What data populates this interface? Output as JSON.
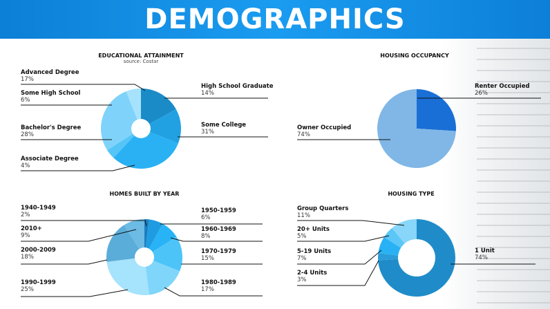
{
  "header": {
    "title": "DEMOGRAPHICS"
  },
  "chart_data": [
    {
      "type": "pie",
      "title": "EDUCATIONAL ATTAINMENT",
      "subtitle": "source: Costar",
      "categories": [
        "Advanced Degree",
        "High School Graduate",
        "Some College",
        "Associate Degree",
        "Bachelor's Degree",
        "Some High School"
      ],
      "values": [
        17,
        14,
        31,
        4,
        28,
        6
      ],
      "labels": [
        "17%",
        "14%",
        "31%",
        "4%",
        "28%",
        "6%"
      ],
      "colors": [
        "#1b8bc7",
        "#22a1e2",
        "#29b1f4",
        "#55c5f7",
        "#7fd3fa",
        "#a7e2fc"
      ]
    },
    {
      "type": "pie",
      "title": "HOUSING OCCUPANCY",
      "categories": [
        "Renter Occupied",
        "Owner Occupied"
      ],
      "values": [
        26,
        74
      ],
      "labels": [
        "26%",
        "74%"
      ],
      "colors": [
        "#1a6fd6",
        "#80b7e6"
      ]
    },
    {
      "type": "pie",
      "title": "HOMES BUILT BY YEAR",
      "categories": [
        "1940-1949",
        "1950-1959",
        "1960-1969",
        "1970-1979",
        "1980-1989",
        "1990-1999",
        "2000-2009",
        "2010+"
      ],
      "values": [
        2,
        6,
        8,
        15,
        17,
        25,
        18,
        9
      ],
      "labels": [
        "2%",
        "6%",
        "8%",
        "15%",
        "17%",
        "25%",
        "18%",
        "9%"
      ],
      "colors": [
        "#1a7fbf",
        "#1f9ce1",
        "#28b3f6",
        "#4dc4f8",
        "#80d5fa",
        "#a6e3fc",
        "#5badd9",
        "#6cbbe5"
      ]
    },
    {
      "type": "pie",
      "title": "HOUSING TYPE",
      "categories": [
        "1 Unit",
        "2-4 Units",
        "5-19 Units",
        "20+ Units",
        "Group Quarters"
      ],
      "values": [
        74,
        3,
        7,
        5,
        11
      ],
      "labels": [
        "74%",
        "3%",
        "7%",
        "5%",
        "11%"
      ],
      "colors": [
        "#1f8cc9",
        "#2a9cd9",
        "#28b2f5",
        "#5cc6f7",
        "#88d6fa"
      ]
    }
  ]
}
